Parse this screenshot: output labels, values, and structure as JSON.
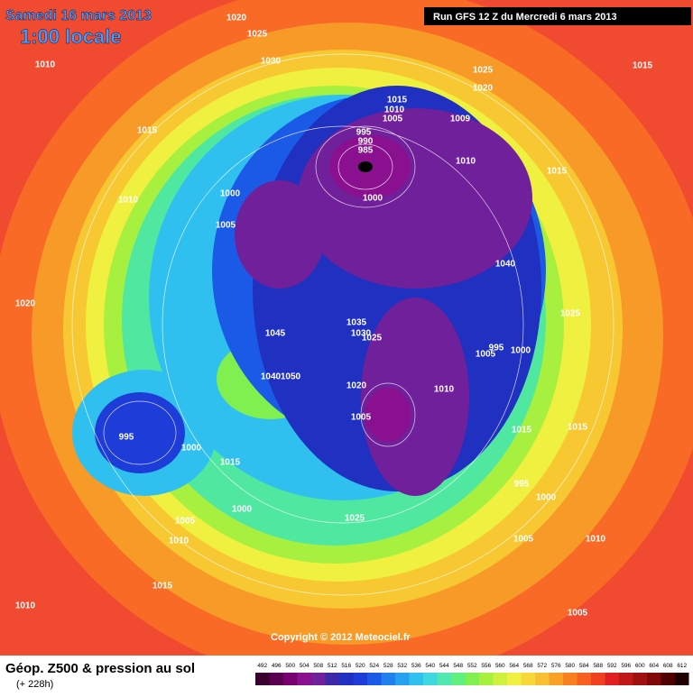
{
  "header": {
    "date": "Samedi 16 mars 2013",
    "time": "1:00 locale",
    "run": "Run GFS 12 Z du Mercredi 6 mars 2013"
  },
  "copyright": "Copyright © 2012 Meteociel.fr",
  "footer": {
    "title": "Géop. Z500 & pression au sol",
    "lead": "(+ 228h)"
  },
  "isobar_labels": [
    1020,
    1025,
    1030,
    1010,
    1015,
    1010,
    1000,
    1005,
    1020,
    1045,
    1035,
    1030,
    1025,
    1040,
    1050,
    1020,
    1005,
    995,
    1000,
    1015,
    1000,
    1005,
    1010,
    1015,
    1010,
    1025,
    1005,
    1010,
    1005,
    995,
    1000,
    1015,
    1010,
    1005,
    995,
    1000,
    1025,
    1040,
    1015,
    1010,
    1009,
    1000,
    1025,
    1020,
    1015,
    1015,
    1010,
    1005,
    995,
    990,
    985,
    1015
  ],
  "legend": {
    "ticks": [
      492,
      496,
      500,
      504,
      508,
      512,
      516,
      520,
      524,
      528,
      532,
      536,
      540,
      544,
      548,
      552,
      556,
      560,
      564,
      568,
      572,
      576,
      580,
      584,
      588,
      592,
      596,
      600,
      604,
      608,
      612
    ],
    "colors": [
      "#3a0030",
      "#5a0050",
      "#7a0070",
      "#8a1090",
      "#70209a",
      "#3c28a8",
      "#2030c0",
      "#1e3cd8",
      "#1a5ae6",
      "#2080ee",
      "#28a0f0",
      "#30c0f0",
      "#40d8e0",
      "#50e8b0",
      "#60f080",
      "#80f050",
      "#a8f040",
      "#d0f040",
      "#f0f040",
      "#f8d838",
      "#f8c030",
      "#f8a028",
      "#f88020",
      "#f86020",
      "#f04020",
      "#e02020",
      "#c01818",
      "#a01010",
      "#800808",
      "#500000",
      "#200000"
    ]
  }
}
